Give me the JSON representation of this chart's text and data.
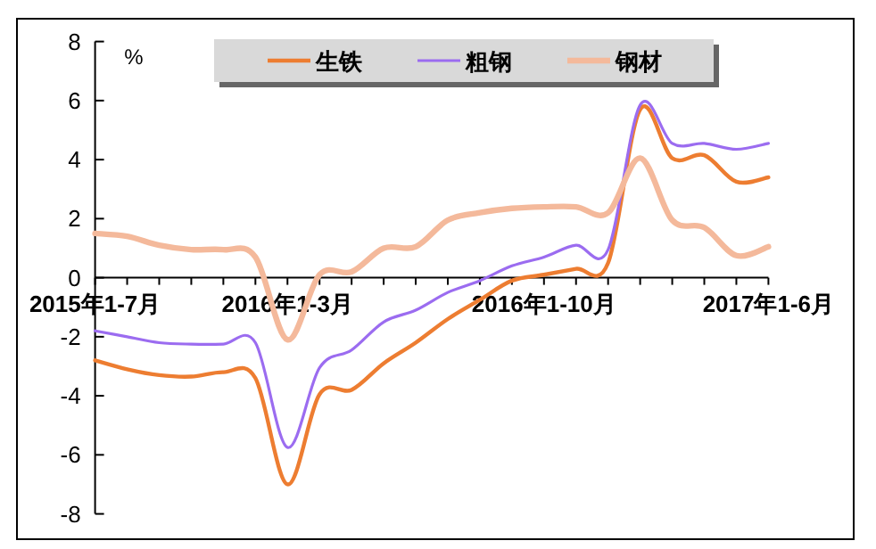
{
  "chart_data": {
    "type": "line",
    "ylabel": "%",
    "categories": [
      "2015年1-7月",
      null,
      null,
      null,
      null,
      null,
      "2016年1-3月",
      null,
      null,
      null,
      null,
      null,
      null,
      null,
      "2016年1-10月",
      null,
      null,
      null,
      null,
      null,
      null,
      "2017年1-6月"
    ],
    "series": [
      {
        "name": "生铁",
        "color": "#ed7d31",
        "values": [
          -2.8,
          -3.1,
          -3.3,
          -3.35,
          -3.2,
          -3.4,
          -7.0,
          -3.95,
          -3.8,
          -2.9,
          -2.2,
          -1.4,
          -0.75,
          -0.1,
          0.1,
          0.3,
          0.5,
          5.7,
          4.05,
          4.15,
          3.25,
          3.4
        ]
      },
      {
        "name": "粗钢",
        "color": "#9b6cf0",
        "values": [
          -1.8,
          -2.0,
          -2.2,
          -2.25,
          -2.25,
          -2.2,
          -5.75,
          -3.05,
          -2.45,
          -1.5,
          -1.1,
          -0.5,
          -0.1,
          0.4,
          0.7,
          1.1,
          0.95,
          5.85,
          4.55,
          4.55,
          4.35,
          4.55
        ]
      },
      {
        "name": "钢材",
        "color": "#f4b99b",
        "values": [
          1.5,
          1.4,
          1.1,
          0.95,
          0.95,
          0.7,
          -2.1,
          0.1,
          0.2,
          1.0,
          1.05,
          1.95,
          2.2,
          2.35,
          2.4,
          2.4,
          2.2,
          4.05,
          1.95,
          1.7,
          0.75,
          1.05
        ]
      }
    ],
    "ylim": [
      -8,
      8
    ],
    "yticks": [
      -8,
      -6,
      -4,
      -2,
      0,
      2,
      4,
      6,
      8
    ],
    "legend": "top",
    "grid": false,
    "marker": "none",
    "line_style": "solid"
  }
}
